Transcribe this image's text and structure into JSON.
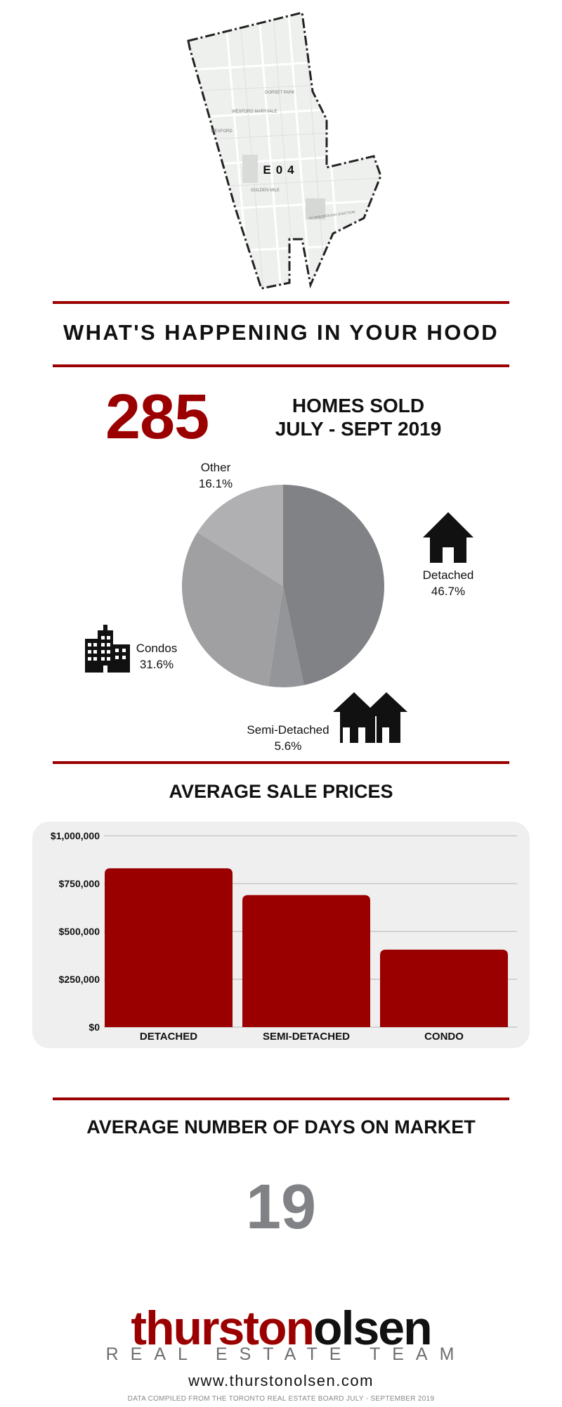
{
  "map": {
    "district_code": "E04",
    "neighbourhoods": [
      "DORSET PARK",
      "WEXFORD MARYVALE",
      "WEXFORD",
      "GOLDEN MILE",
      "SCARBOROUGH JUNCTION"
    ]
  },
  "header": {
    "title": "WHAT'S HAPPENING IN YOUR HOOD"
  },
  "sales": {
    "homes_sold": "285",
    "label_line1": "HOMES SOLD",
    "label_line2": "JULY - SEPT 2019"
  },
  "colors": {
    "accent": "#9b0000",
    "days_grey": "#808285",
    "panel_bg": "#efefef"
  },
  "icons": [
    "house-icon",
    "townhouses-icon",
    "condo-building-icon"
  ],
  "chart_data": [
    {
      "type": "pie",
      "slices": [
        {
          "name": "Detached",
          "value": 46.7,
          "label": "46.7%",
          "color": "#808285"
        },
        {
          "name": "Semi-Detached",
          "value": 5.6,
          "label": "5.6%",
          "color": "#939598"
        },
        {
          "name": "Condos",
          "value": 31.6,
          "label": "31.6%",
          "color": "#a0a0a3"
        },
        {
          "name": "Other",
          "value": 16.1,
          "label": "16.1%",
          "color": "#b0afb1"
        }
      ]
    },
    {
      "type": "bar",
      "title": "AVERAGE SALE PRICES",
      "categories": [
        "DETACHED",
        "SEMI-DETACHED",
        "CONDO"
      ],
      "values": [
        830000,
        690000,
        405000
      ],
      "ylim": [
        0,
        1000000
      ],
      "yticks": [
        0,
        250000,
        500000,
        750000,
        1000000
      ],
      "ytick_labels": [
        "$0",
        "$250,000",
        "$500,000",
        "$750,000",
        "$1,000,000"
      ],
      "grid": true,
      "bar_color": "#9b0000"
    }
  ],
  "days_on_market": {
    "title": "AVERAGE NUMBER OF DAYS ON MARKET",
    "value": "19"
  },
  "footer": {
    "brand_part1": "thurston",
    "brand_part2": "olsen",
    "tagline": "REAL ESTATE TEAM",
    "website": "www.thurstonolsen.com",
    "note": "DATA COMPILED FROM THE TORONTO REAL ESTATE BOARD JULY - SEPTEMBER 2019"
  }
}
